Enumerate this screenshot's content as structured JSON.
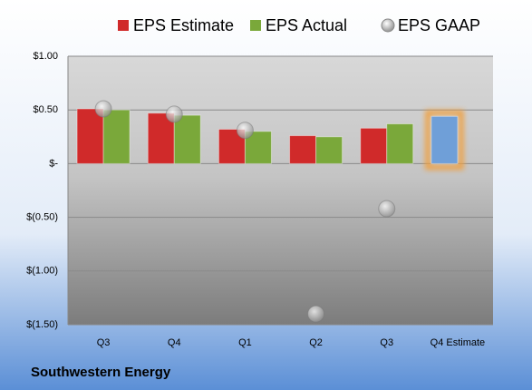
{
  "chart_data": {
    "type": "bar",
    "categories": [
      "Q3",
      "Q4",
      "Q1",
      "Q2",
      "Q3",
      "Q4 Estimate"
    ],
    "series": [
      {
        "name": "EPS Estimate",
        "color": "#d02a2a",
        "type": "bar",
        "values": [
          0.51,
          0.47,
          0.32,
          0.26,
          0.33,
          0.44
        ],
        "point_colors": [
          null,
          null,
          null,
          null,
          null,
          "#6f9fd8"
        ]
      },
      {
        "name": "EPS Actual",
        "color": "#7aa83a",
        "type": "bar",
        "values": [
          0.5,
          0.45,
          0.3,
          0.25,
          0.37,
          null
        ]
      },
      {
        "name": "EPS GAAP",
        "color": "#a8a8a8",
        "type": "scatter",
        "values": [
          0.51,
          0.46,
          0.31,
          -1.4,
          -0.42,
          null
        ]
      }
    ],
    "ylim": [
      -1.5,
      1.0
    ],
    "yticks": [
      {
        "value": 1.0,
        "label": "$1.00"
      },
      {
        "value": 0.5,
        "label": "$0.50"
      },
      {
        "value": 0,
        "label": "$-"
      },
      {
        "value": -0.5,
        "label": "$(0.50)"
      },
      {
        "value": -1.0,
        "label": "$(1.00)"
      },
      {
        "value": -1.5,
        "label": "$(1.50)"
      }
    ],
    "grid": true,
    "legend": "top",
    "footer": "Southwestern Energy"
  }
}
